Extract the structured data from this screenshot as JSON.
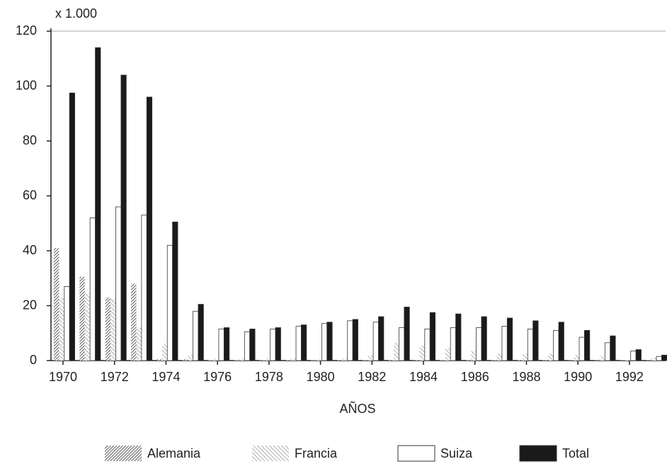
{
  "chart_data": {
    "type": "bar",
    "ylabel": "x 1.000",
    "xlabel": "AÑOS",
    "categories": [
      "1970",
      null,
      "1972",
      null,
      "1974",
      null,
      "1976",
      null,
      "1978",
      null,
      "1980",
      null,
      "1982",
      null,
      "1984",
      null,
      "1986",
      null,
      "1988",
      null,
      "1990",
      null,
      "1992",
      null
    ],
    "series": [
      {
        "name": "Alemania",
        "color": "#555555",
        "pattern": "hatch-dense",
        "values": [
          41,
          30.5,
          23,
          28,
          0.5,
          0.5,
          0.3,
          0.3,
          0.2,
          0.2,
          0.2,
          0.2,
          0.2,
          0.2,
          0.2,
          0.2,
          0.2,
          0.2,
          0.2,
          0.2,
          0.1,
          0.1,
          0.1,
          0.1
        ]
      },
      {
        "name": "Francia",
        "color": "#888888",
        "pattern": "hatch-light",
        "values": [
          23,
          24.5,
          22.5,
          12,
          6,
          2,
          0.8,
          0.8,
          0.7,
          0.8,
          0.5,
          0.8,
          2,
          6.5,
          5.5,
          4.5,
          3.5,
          2.5,
          2.5,
          2.5,
          2,
          1.5,
          0.3,
          1
        ]
      },
      {
        "name": "Suiza",
        "color": "#ffffff",
        "values": [
          27,
          52,
          56,
          53,
          42,
          18,
          11.5,
          10.5,
          11.5,
          12.5,
          13.5,
          14.5,
          14,
          12,
          11.5,
          12,
          12,
          12.5,
          11.5,
          11,
          8.5,
          6.5,
          3.5,
          1.5
        ]
      },
      {
        "name": "Total",
        "color": "#1a1a1a",
        "values": [
          97.5,
          114,
          104,
          96,
          50.5,
          20.5,
          12,
          11.5,
          12,
          13,
          14,
          15,
          16,
          19.5,
          17.5,
          17,
          16,
          15.5,
          14.5,
          14,
          11,
          9,
          4,
          2
        ]
      }
    ],
    "ylim": [
      0,
      120
    ],
    "yticks": [
      0,
      20,
      40,
      60,
      80,
      100,
      120
    ],
    "grid": false,
    "legend": "bottom"
  }
}
